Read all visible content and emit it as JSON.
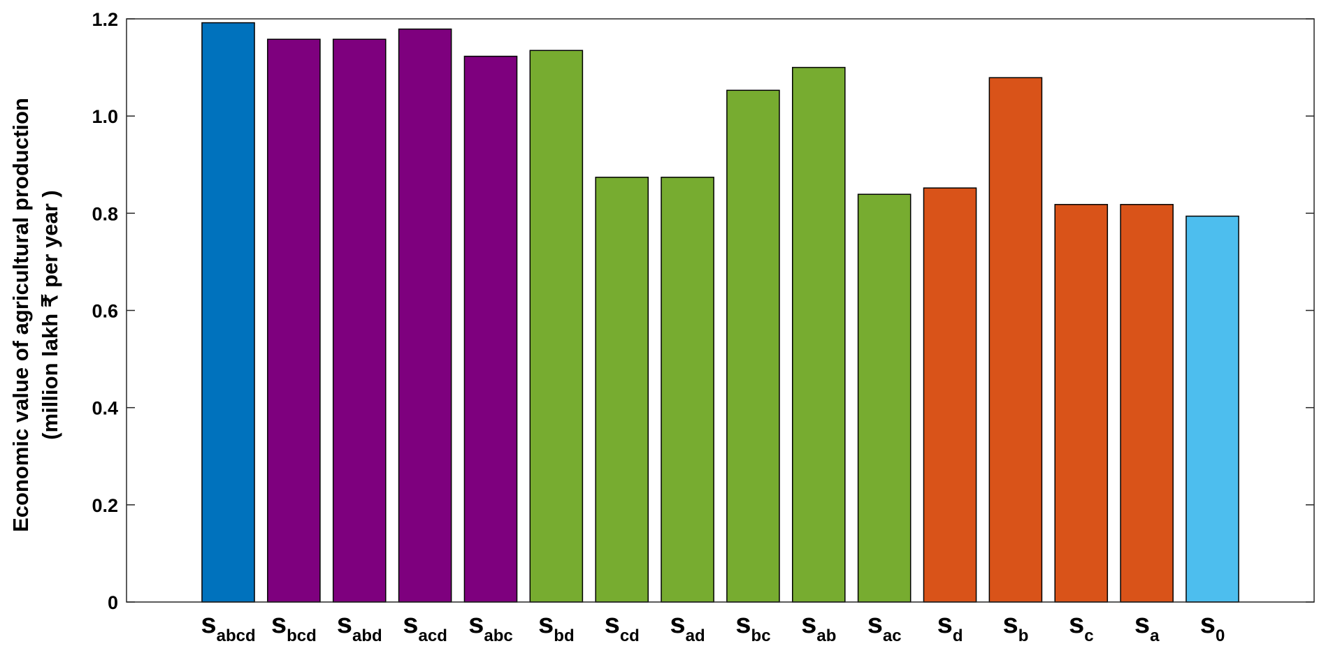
{
  "chart_data": {
    "type": "bar",
    "ylabel": [
      "Economic value of agricultural production",
      "(million lakh ₹ per year )"
    ],
    "ylim": [
      0,
      1.2
    ],
    "yticks": [
      0,
      0.2,
      0.4,
      0.6,
      0.8,
      1.0,
      1.2
    ],
    "ytick_labels": [
      "0",
      "0.2",
      "0.4",
      "0.6",
      "0.8",
      "1.0",
      "1.2"
    ],
    "grid": false,
    "categories": [
      {
        "main": "s",
        "sub": "abcd"
      },
      {
        "main": "s",
        "sub": "bcd"
      },
      {
        "main": "s",
        "sub": "abd"
      },
      {
        "main": "s",
        "sub": "acd"
      },
      {
        "main": "s",
        "sub": "abc"
      },
      {
        "main": "s",
        "sub": "bd"
      },
      {
        "main": "s",
        "sub": "cd"
      },
      {
        "main": "s",
        "sub": "ad"
      },
      {
        "main": "s",
        "sub": "bc"
      },
      {
        "main": "s",
        "sub": "ab"
      },
      {
        "main": "s",
        "sub": "ac"
      },
      {
        "main": "s",
        "sub": "d"
      },
      {
        "main": "s",
        "sub": "b"
      },
      {
        "main": "s",
        "sub": "c"
      },
      {
        "main": "s",
        "sub": "a"
      },
      {
        "main": "s",
        "sub": "0"
      }
    ],
    "values": [
      1.192,
      1.158,
      1.158,
      1.179,
      1.123,
      1.135,
      0.874,
      0.874,
      1.053,
      1.1,
      0.839,
      0.852,
      1.079,
      0.818,
      0.818,
      0.794
    ],
    "colors": [
      "#0072BD",
      "#7E007E",
      "#7E007E",
      "#7E007E",
      "#7E007E",
      "#77AC30",
      "#77AC30",
      "#77AC30",
      "#77AC30",
      "#77AC30",
      "#77AC30",
      "#D95319",
      "#D95319",
      "#D95319",
      "#D95319",
      "#4DBEEE"
    ]
  }
}
